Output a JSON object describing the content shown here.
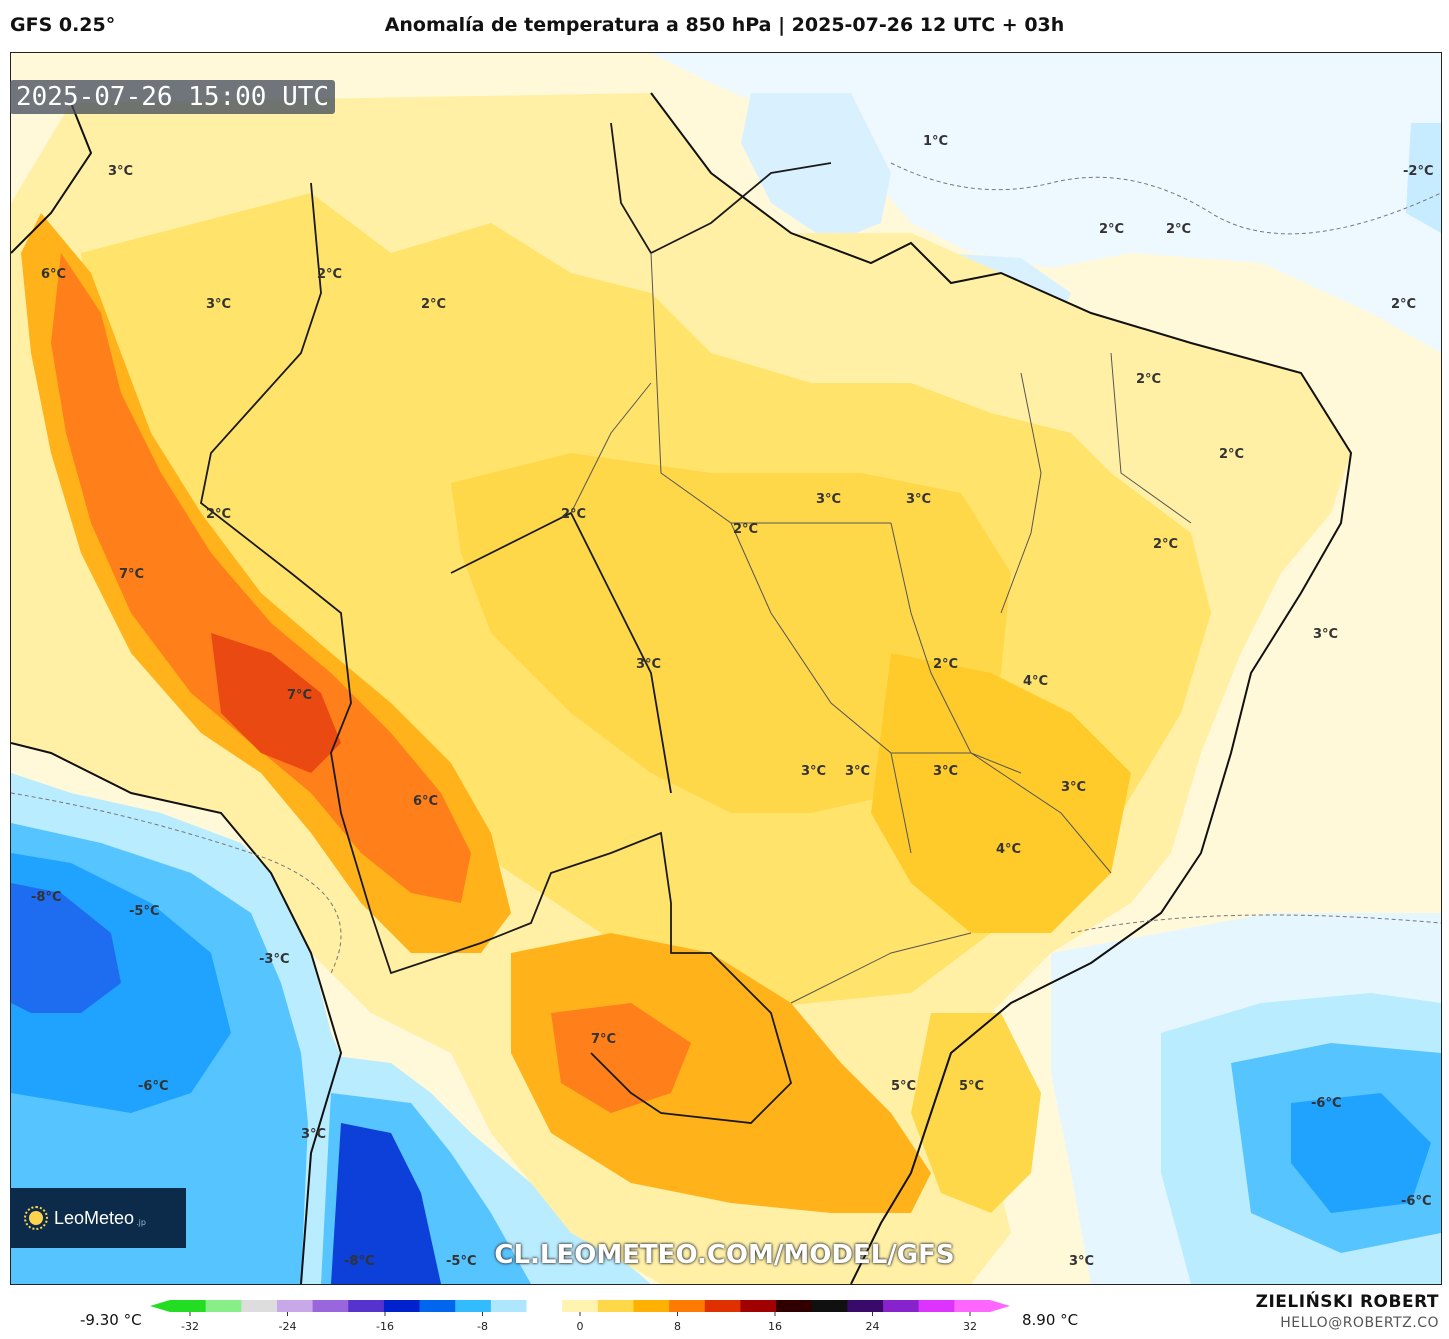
{
  "header": {
    "model": "GFS 0.25°",
    "title": "Anomalía de temperatura a 850 hPa | 2025-07-26 12 UTC + 03h"
  },
  "timestamp": "2025-07-26 15:00 UTC",
  "watermark": "CL.LEOMETEO.COM/MODEL/GFS",
  "logo": {
    "brand": "LeoMeteo",
    "tld": ".jp"
  },
  "author": {
    "name": "ZIELIŃSKI ROBERT",
    "email": "HELLO@ROBERTZ.CO"
  },
  "map_labels": [
    "1°C",
    "-2°C",
    "3°C",
    "6°C",
    "2°C",
    "3°C",
    "2°C",
    "2°C",
    "2°C",
    "2°C",
    "2°C",
    "2°C",
    "3°C",
    "3°C",
    "2°C",
    "2°C",
    "2°C",
    "7°C",
    "2°C",
    "3°C",
    "3°C",
    "4°C",
    "7°C",
    "2°C",
    "3°C",
    "3°C",
    "3°C",
    "3°C",
    "6°C",
    "4°C",
    "-8°C",
    "-5°C",
    "-3°C",
    "7°C",
    "-6°C",
    "5°C",
    "5°C",
    "-6°C",
    "3°C",
    "-6°C",
    "-8°C",
    "-5°C",
    "3°C"
  ],
  "colorbar": {
    "min_label": "-9.30 °C",
    "max_label": "8.90 °C",
    "ticks": [
      "-32",
      "-24",
      "-16",
      "-8",
      "0",
      "8",
      "16",
      "24",
      "32"
    ],
    "colors": [
      "#22dd22",
      "#88ee88",
      "#dddddd",
      "#c8a8e8",
      "#9966dd",
      "#5533cc",
      "#0022cc",
      "#0066ee",
      "#33bbff",
      "#aee6ff",
      "#ffffff",
      "#fff3b0",
      "#ffd84a",
      "#ffb000",
      "#ff7a00",
      "#e03000",
      "#a00000",
      "#300000",
      "#101010",
      "#3a0a6a",
      "#8822cc",
      "#dd33ff",
      "#ff66ff"
    ]
  },
  "legend_colors": {
    "cold_deep": "#0d3fd9",
    "cold": "#1fa3ff",
    "cool": "#b9ecff",
    "neutral": "#ffffff",
    "warm_light": "#fff0a6",
    "warm": "#ffd84a",
    "warmer": "#ffb21a",
    "hot": "#ff7f1a",
    "hotter": "#ea4a12"
  }
}
